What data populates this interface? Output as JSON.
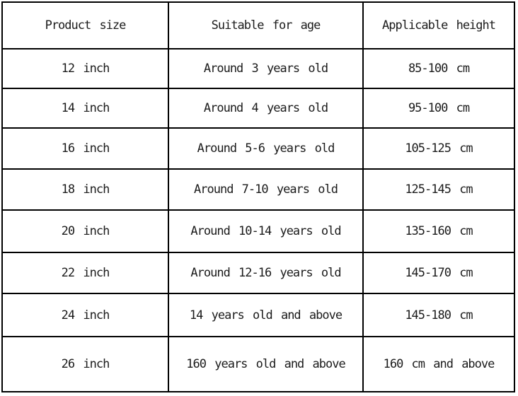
{
  "chart_data": {
    "type": "table",
    "columns": [
      "Product size",
      "Suitable for age",
      "Applicable height"
    ],
    "rows": [
      [
        "12 inch",
        "Around 3 years old",
        "85-100 cm"
      ],
      [
        "14 inch",
        "Around 4 years old",
        "95-100 cm"
      ],
      [
        "16 inch",
        "Around 5-6 years old",
        "105-125 cm"
      ],
      [
        "18 inch",
        "Around 7-10 years old",
        "125-145 cm"
      ],
      [
        "20 inch",
        "Around 10-14 years old",
        "135-160 cm"
      ],
      [
        "22 inch",
        "Around 12-16 years old",
        "145-170 cm"
      ],
      [
        "24 inch",
        "14 years old and above",
        "145-180 cm"
      ],
      [
        "26 inch",
        "160 years old and above",
        "160 cm and above"
      ]
    ],
    "layout_hints": {
      "grid": "all-borders",
      "header_row": true,
      "cell_alignment": "center"
    }
  },
  "colors": {
    "border": "#000000",
    "text": "#1b1b1b",
    "background": "#ffffff"
  }
}
